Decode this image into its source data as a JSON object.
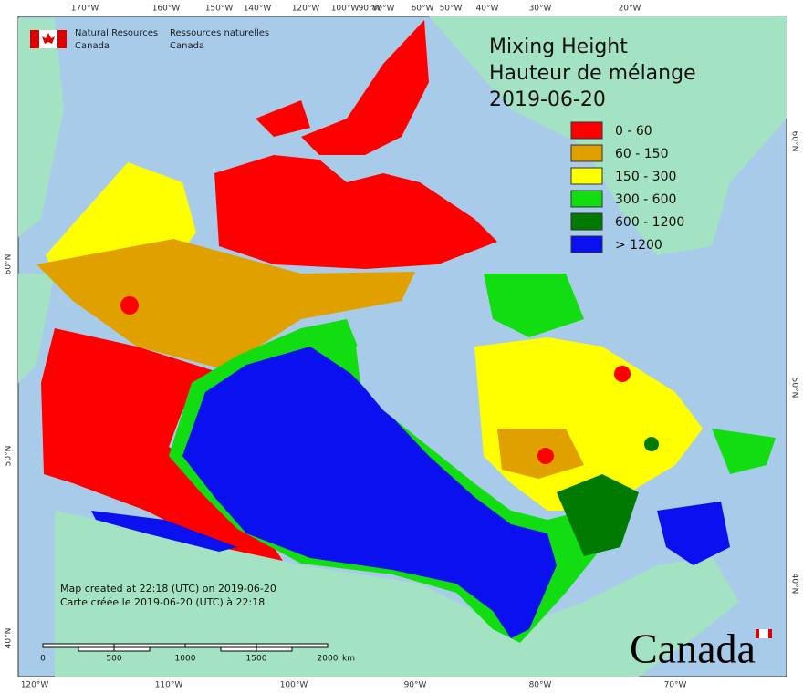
{
  "header": {
    "agency_en": [
      "Natural Resources",
      "Canada"
    ],
    "agency_fr": [
      "Ressources naturelles",
      "Canada"
    ]
  },
  "title": [
    "Mixing Height",
    "Hauteur de mélange",
    "2019-06-20"
  ],
  "legend": [
    {
      "label": "0 - 60",
      "color": "#ff0000"
    },
    {
      "label": "60 - 150",
      "color": "#dfa000"
    },
    {
      "label": "150 - 300",
      "color": "#ffff00"
    },
    {
      "label": "300 - 600",
      "color": "#11dd11"
    },
    {
      "label": "600 - 1200",
      "color": "#007a00"
    },
    {
      "label": "> 1200",
      "color": "#0a10ee"
    }
  ],
  "graticule": {
    "top": [
      "170°W",
      "160°W",
      "150°W",
      "140°W",
      "120°W",
      "100°W",
      "90°W",
      "80°W",
      "60°W",
      "50°W",
      "40°W",
      "30°W",
      "20°W"
    ],
    "bottom": [
      "120°W",
      "110°W",
      "100°W",
      "90°W",
      "80°W",
      "70°W"
    ],
    "left": [
      "60°N",
      "50°N",
      "40°N"
    ],
    "right": [
      "60°N",
      "50°N",
      "40°N"
    ]
  },
  "notes": [
    "Map created at 22:18 (UTC) on 2019-06-20",
    "Carte créée le 2019-06-20 (UTC) à 22:18"
  ],
  "scale_bar": {
    "labels": [
      "0",
      "500",
      "1000",
      "1500",
      "2000"
    ],
    "unit": "km"
  },
  "wordmark": "Canada"
}
